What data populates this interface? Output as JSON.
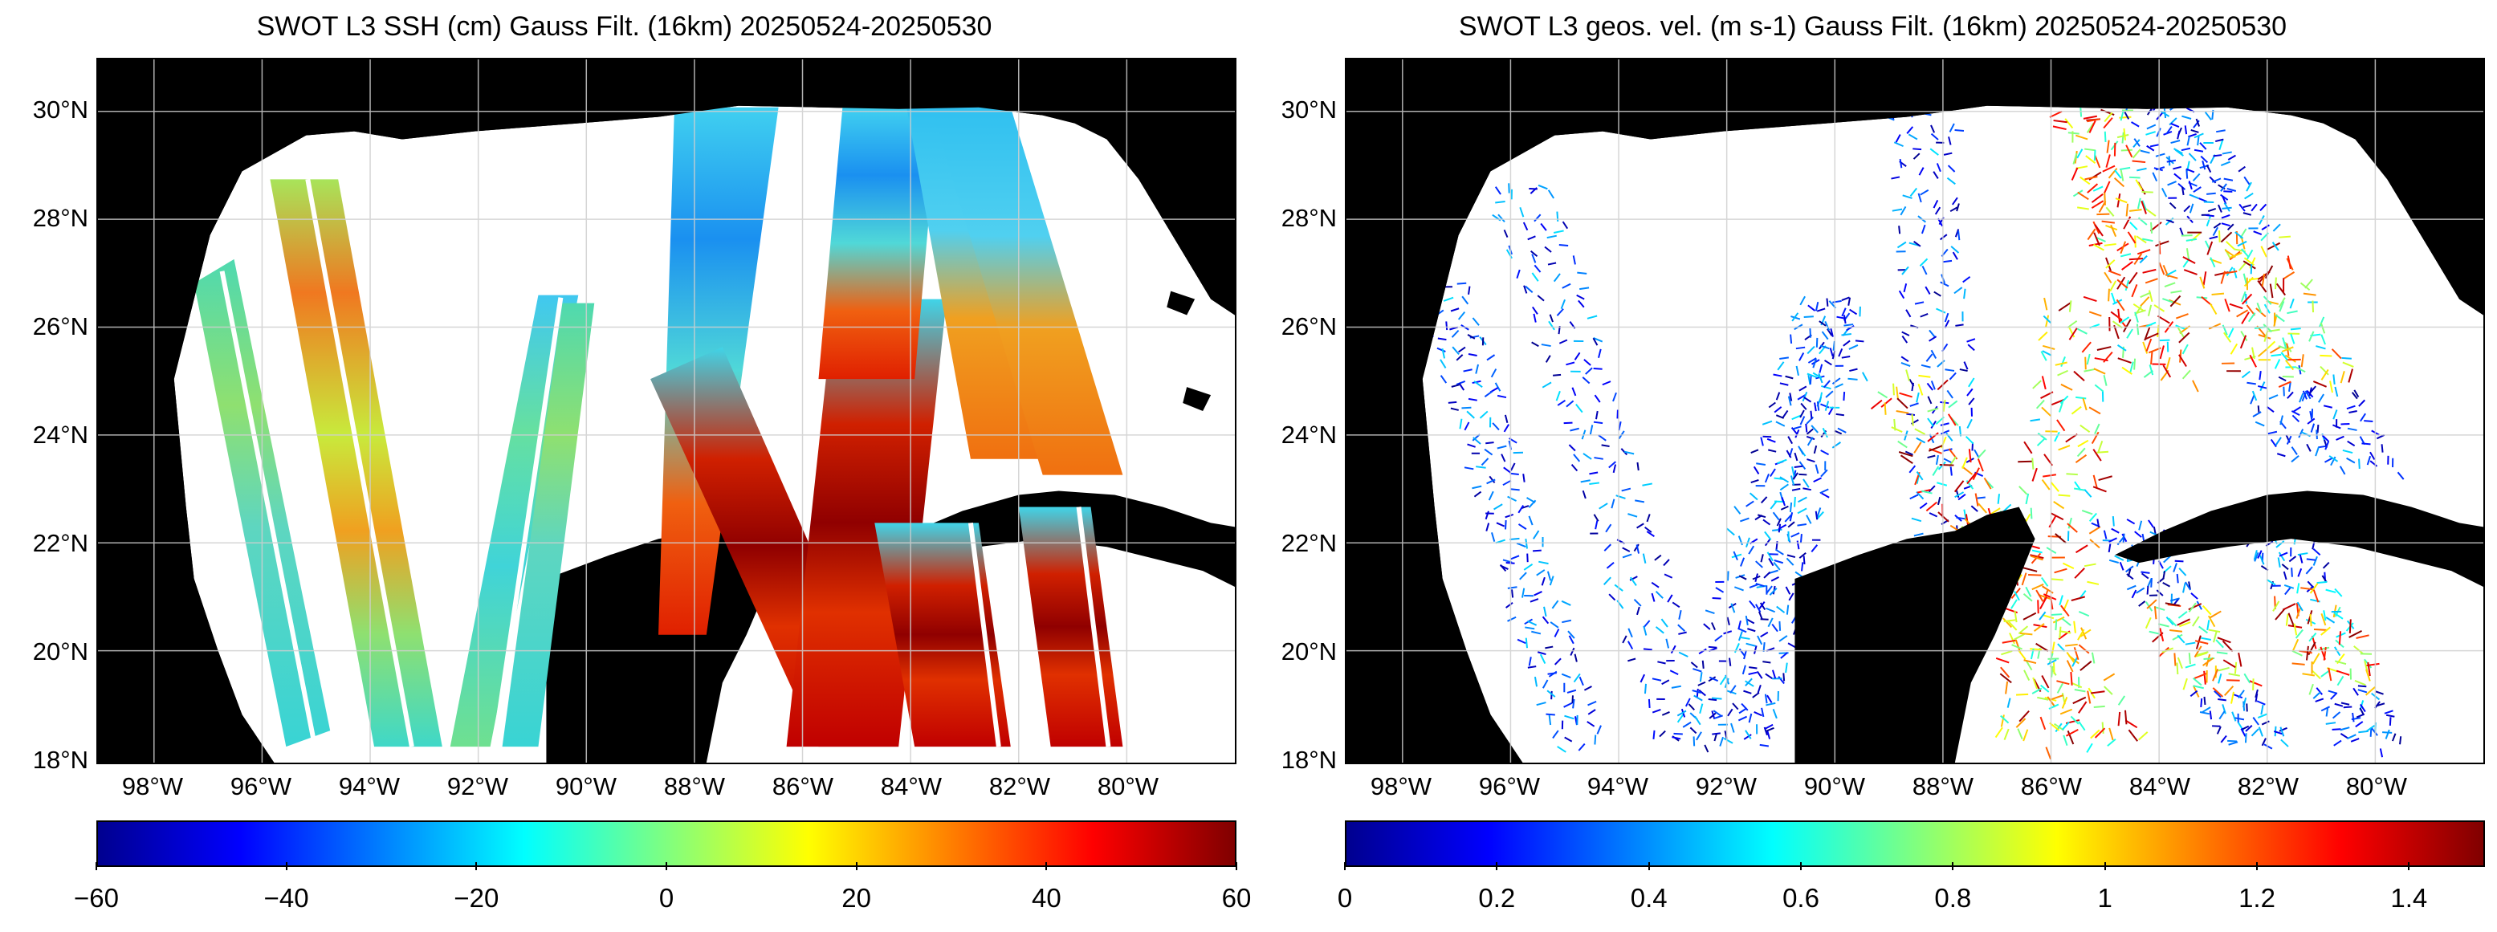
{
  "panels": [
    {
      "title": "SWOT L3 SSH (cm) Gauss Filt. (16km) 20250524-20250530",
      "colorbar_ticks": [
        "−60",
        "−40",
        "−20",
        "0",
        "20",
        "40",
        "60"
      ],
      "colormap": "jet"
    },
    {
      "title": "SWOT L3 geos. vel. (m s-1) Gauss Filt. (16km) 20250524-20250530",
      "colorbar_ticks": [
        "0",
        "0.2",
        "0.4",
        "0.6",
        "0.8",
        "1",
        "1.2",
        "1.4"
      ],
      "colormap": "jet"
    }
  ],
  "lat_ticks": [
    "30°N",
    "28°N",
    "26°N",
    "24°N",
    "22°N",
    "20°N",
    "18°N"
  ],
  "lon_ticks": [
    "98°W",
    "96°W",
    "94°W",
    "92°W",
    "90°W",
    "88°W",
    "86°W",
    "84°W",
    "82°W",
    "80°W"
  ],
  "colors": {
    "land": "#000000",
    "ocean": "#ffffff",
    "grid": "#cfcfcf",
    "jet": [
      "#00008f",
      "#0000ff",
      "#00ffff",
      "#ffff00",
      "#ff0000",
      "#800000"
    ]
  }
}
